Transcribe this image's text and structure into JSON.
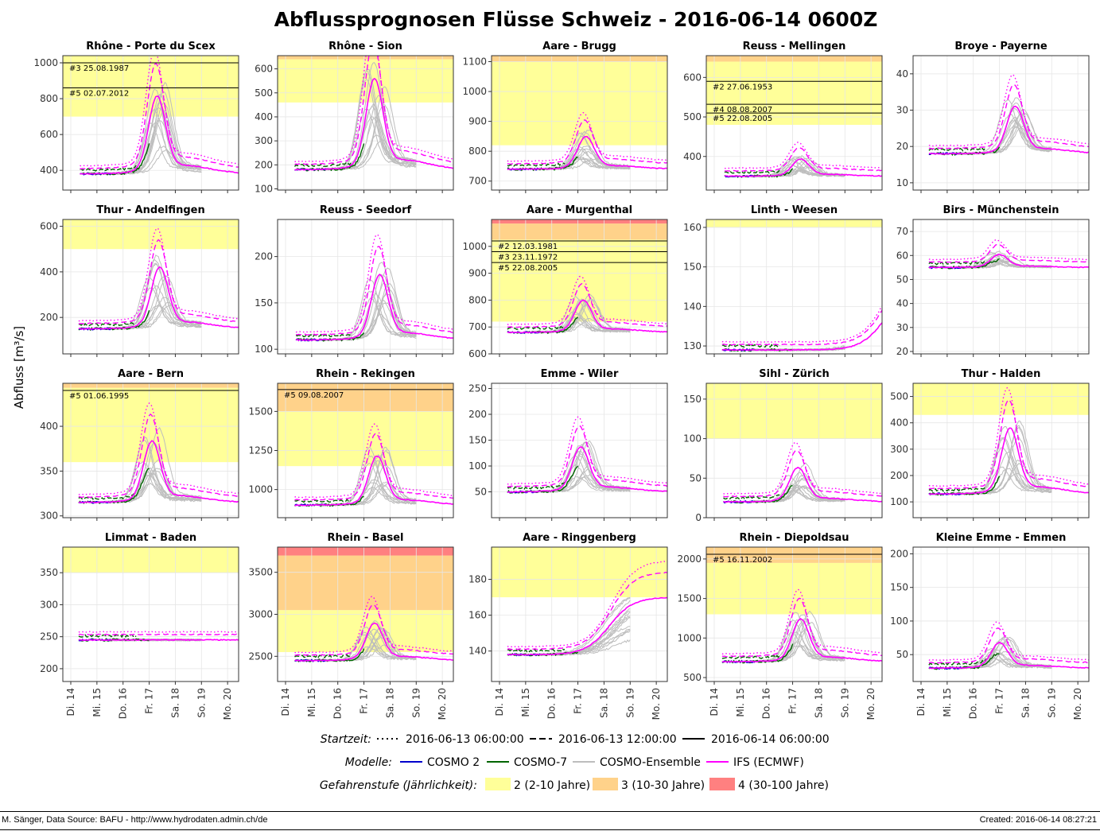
{
  "title": "Abflussprognosen Flüsse Schweiz - 2016-06-14 0600Z",
  "ylabel": "Abfluss [m³/s]",
  "footer": {
    "left": "M. Sänger, Data Source: BAFU - http://www.hydrodaten.admin.ch/de",
    "right": "Created: 2016-06-14 08:27:21"
  },
  "x_ticks": [
    "Di. 14",
    "Mi. 15",
    "Do. 16",
    "Fr. 17",
    "Sa. 18",
    "So. 19",
    "Mo. 20"
  ],
  "legend": {
    "startzeit": {
      "label": "Startzeit:",
      "items": [
        "2016-06-13 06:00:00",
        "2016-06-13 12:00:00",
        "2016-06-14 06:00:00"
      ]
    },
    "modelle": {
      "label": "Modelle:",
      "items": [
        {
          "name": "COSMO 2",
          "color": "#0000cc"
        },
        {
          "name": "COSMO-7",
          "color": "#006400"
        },
        {
          "name": "COSMO-Ensemble",
          "color": "#bdbdbd"
        },
        {
          "name": "IFS (ECMWF)",
          "color": "#ff00ff"
        }
      ]
    },
    "gefahr": {
      "label": "Gefahrenstufe (Jährlichkeit):",
      "items": [
        {
          "name": "2 (2-10 Jahre)",
          "color": "#ffff99"
        },
        {
          "name": "3 (10-30 Jahre)",
          "color": "#ffd28a"
        },
        {
          "name": "4 (30-100 Jahre)",
          "color": "#ff8080"
        }
      ]
    }
  },
  "chart_data": [
    {
      "type": "line",
      "title": "Rhône - Porte du Scex",
      "ylim": [
        290,
        1040
      ],
      "yticks": [
        400,
        600,
        800,
        1000
      ],
      "bands": [
        [
          700,
          1040,
          "#ffff99"
        ]
      ],
      "hlines": [
        [
          1000,
          "#3 25.08.1987"
        ],
        [
          860,
          "#5 02.07.2012"
        ]
      ],
      "base": 380,
      "peak": 780,
      "peakt": 3.3,
      "start": 0.35
    },
    {
      "type": "line",
      "title": "Rhône - Sion",
      "ylim": [
        95,
        655
      ],
      "yticks": [
        100,
        200,
        300,
        400,
        500,
        600
      ],
      "bands": [
        [
          460,
          640,
          "#ffff99"
        ],
        [
          640,
          655,
          "#ffd28a"
        ]
      ],
      "hlines": [],
      "base": 180,
      "peak": 530,
      "peakt": 3.4,
      "start": 0.35
    },
    {
      "type": "line",
      "title": "Aare - Brugg",
      "ylim": [
        670,
        1120
      ],
      "yticks": [
        700,
        800,
        900,
        1000,
        1100
      ],
      "bands": [
        [
          820,
          1100,
          "#ffff99"
        ],
        [
          1100,
          1120,
          "#ffd28a"
        ]
      ],
      "hlines": [],
      "base": 740,
      "peak": 840,
      "peakt": 3.3,
      "start": 0.3
    },
    {
      "type": "line",
      "title": "Reuss - Mellingen",
      "ylim": [
        315,
        655
      ],
      "yticks": [
        400,
        500,
        600
      ],
      "bands": [
        [
          480,
          640,
          "#ffff99"
        ],
        [
          640,
          655,
          "#ffd28a"
        ]
      ],
      "hlines": [
        [
          590,
          "#2 27.06.1953"
        ],
        [
          532,
          "#4 08.08.2007"
        ],
        [
          510,
          "#5 22.08.2005"
        ]
      ],
      "base": 350,
      "peak": 390,
      "peakt": 3.3,
      "start": 0.4
    },
    {
      "type": "line",
      "title": "Broye - Payerne",
      "ylim": [
        8,
        45
      ],
      "yticks": [
        10,
        20,
        30,
        40
      ],
      "bands": [],
      "hlines": [],
      "base": 18,
      "peak": 30,
      "peakt": 3.6,
      "start": 0.3
    },
    {
      "type": "line",
      "title": "Thur - Andelfingen",
      "ylim": [
        40,
        630
      ],
      "yticks": [
        200,
        400,
        600
      ],
      "bands": [
        [
          500,
          630,
          "#ffff99"
        ]
      ],
      "hlines": [],
      "base": 150,
      "peak": 400,
      "peakt": 3.4,
      "start": 0.3
    },
    {
      "type": "line",
      "title": "Reuss - Seedorf",
      "ylim": [
        95,
        240
      ],
      "yticks": [
        100,
        150,
        200
      ],
      "bands": [],
      "hlines": [],
      "base": 110,
      "peak": 175,
      "peakt": 3.6,
      "start": 0.4
    },
    {
      "type": "line",
      "title": "Aare - Murgenthal",
      "ylim": [
        600,
        1100
      ],
      "yticks": [
        600,
        700,
        800,
        900,
        1000
      ],
      "bands": [
        [
          720,
          1025,
          "#ffff99"
        ],
        [
          1025,
          1085,
          "#ffd28a"
        ],
        [
          1085,
          1100,
          "#ff8080"
        ]
      ],
      "hlines": [
        [
          1020,
          "#2 12.03.1981"
        ],
        [
          980,
          "#3 23.11.1972"
        ],
        [
          940,
          "#5 22.08.2005"
        ]
      ],
      "base": 680,
      "peak": 790,
      "peakt": 3.2,
      "start": 0.3
    },
    {
      "type": "line",
      "title": "Linth - Weesen",
      "ylim": [
        128,
        162
      ],
      "yticks": [
        130,
        140,
        150,
        160
      ],
      "bands": [
        [
          160,
          162,
          "#ffff99"
        ]
      ],
      "hlines": [],
      "base": 129,
      "peak": 144,
      "peakt": 6.5,
      "start": 0.3,
      "rising": true
    },
    {
      "type": "line",
      "title": "Birs - Münchenstein",
      "ylim": [
        19,
        75
      ],
      "yticks": [
        20,
        30,
        40,
        50,
        60,
        70
      ],
      "bands": [],
      "hlines": [],
      "base": 55,
      "peak": 60,
      "peakt": 3.0,
      "start": 0.3
    },
    {
      "type": "line",
      "title": "Aare - Bern",
      "ylim": [
        298,
        448
      ],
      "yticks": [
        300,
        350,
        400
      ],
      "bands": [
        [
          360,
          443,
          "#ffff99"
        ],
        [
          443,
          448,
          "#ffd28a"
        ]
      ],
      "hlines": [
        [
          440,
          "#5 01.06.1995"
        ]
      ],
      "base": 315,
      "peak": 378,
      "peakt": 3.1,
      "start": 0.3
    },
    {
      "type": "line",
      "title": "Rhein - Rekingen",
      "ylim": [
        820,
        1680
      ],
      "yticks": [
        1000,
        1250,
        1500
      ],
      "bands": [
        [
          1150,
          1500,
          "#ffff99"
        ],
        [
          1500,
          1680,
          "#ffd28a"
        ]
      ],
      "hlines": [
        [
          1640,
          "#5 09.08.2007"
        ]
      ],
      "base": 900,
      "peak": 1190,
      "peakt": 3.5,
      "start": 0.35
    },
    {
      "type": "line",
      "title": "Emme - Wiler",
      "ylim": [
        0,
        260
      ],
      "yticks": [
        50,
        100,
        150,
        200,
        250
      ],
      "bands": [],
      "hlines": [],
      "base": 50,
      "peak": 130,
      "peakt": 3.1,
      "start": 0.3
    },
    {
      "type": "line",
      "title": "Sihl - Zürich",
      "ylim": [
        0,
        170
      ],
      "yticks": [
        0,
        50,
        100,
        150
      ],
      "bands": [
        [
          100,
          170,
          "#ffff99"
        ]
      ],
      "hlines": [],
      "base": 20,
      "peak": 60,
      "peakt": 3.2,
      "start": 0.35
    },
    {
      "type": "line",
      "title": "Thur - Halden",
      "ylim": [
        40,
        550
      ],
      "yticks": [
        100,
        200,
        300,
        400,
        500
      ],
      "bands": [
        [
          430,
          550,
          "#ffff99"
        ]
      ],
      "hlines": [],
      "base": 130,
      "peak": 360,
      "peakt": 3.4,
      "start": 0.3
    },
    {
      "type": "line",
      "title": "Limmat - Baden",
      "ylim": [
        180,
        390
      ],
      "yticks": [
        200,
        250,
        300,
        350
      ],
      "bands": [
        [
          350,
          390,
          "#ffff99"
        ]
      ],
      "hlines": [],
      "base": 245,
      "peak": 245,
      "peakt": 3.1,
      "start": 0.3
    },
    {
      "type": "line",
      "title": "Rhein - Basel",
      "ylim": [
        2200,
        3800
      ],
      "yticks": [
        2500,
        3000,
        3500
      ],
      "bands": [
        [
          2550,
          3050,
          "#ffff99"
        ],
        [
          3050,
          3700,
          "#ffd28a"
        ],
        [
          3700,
          3800,
          "#ff8080"
        ]
      ],
      "hlines": [],
      "base": 2450,
      "peak": 2860,
      "peakt": 3.4,
      "start": 0.35
    },
    {
      "type": "line",
      "title": "Aare - Ringgenberg",
      "ylim": [
        123,
        198
      ],
      "yticks": [
        140,
        160,
        180
      ],
      "bands": [
        [
          170,
          198,
          "#ffff99"
        ]
      ],
      "hlines": [],
      "base": 138,
      "peak": 170,
      "peakt": 4.2,
      "start": 0.3,
      "rising": true
    },
    {
      "type": "line",
      "title": "Rhein - Diepoldsau",
      "ylim": [
        450,
        2150
      ],
      "yticks": [
        500,
        1000,
        1500,
        2000
      ],
      "bands": [
        [
          1300,
          1950,
          "#ffff99"
        ],
        [
          1950,
          2150,
          "#ffd28a"
        ]
      ],
      "hlines": [
        [
          2060,
          "#5 16.11.2002"
        ]
      ],
      "base": 700,
      "peak": 1200,
      "peakt": 3.3,
      "start": 0.3
    },
    {
      "type": "line",
      "title": "Kleine Emme - Emmen",
      "ylim": [
        10,
        210
      ],
      "yticks": [
        50,
        100,
        150,
        200
      ],
      "bands": [],
      "hlines": [],
      "base": 30,
      "peak": 65,
      "peakt": 3.0,
      "start": 0.3
    }
  ]
}
